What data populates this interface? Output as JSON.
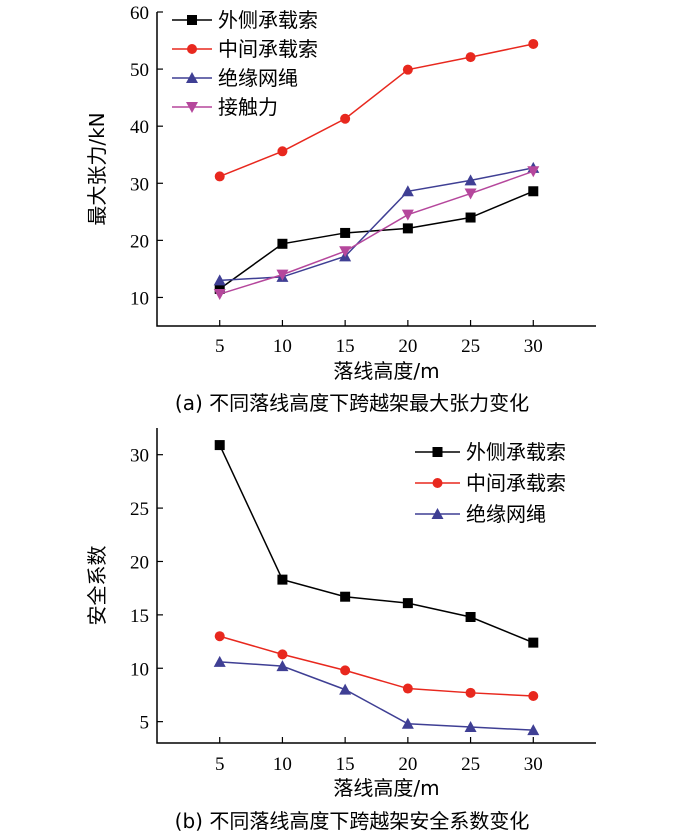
{
  "chart_data": [
    {
      "type": "line",
      "panel": "a",
      "caption": "(a) 不同落线高度下跨越架最大张力变化",
      "xlabel": "落线高度/m",
      "ylabel": "最大张力/kN",
      "x": [
        5,
        10,
        15,
        20,
        25,
        30
      ],
      "xlim": [
        0,
        35
      ],
      "ylim": [
        5,
        60
      ],
      "xticks": [
        5,
        10,
        15,
        20,
        25,
        30
      ],
      "yticks": [
        10,
        20,
        30,
        40,
        50,
        60
      ],
      "legend_position": "top-left",
      "grid": false,
      "series": [
        {
          "name": "外侧承载索",
          "values": [
            11.5,
            19.4,
            21.3,
            22.1,
            24.0,
            28.6
          ],
          "color": "#000000",
          "marker": "square"
        },
        {
          "name": "中间承载索",
          "values": [
            31.2,
            35.6,
            41.3,
            49.9,
            52.1,
            54.4
          ],
          "color": "#e8281e",
          "marker": "circle"
        },
        {
          "name": "绝缘网绳",
          "values": [
            13.0,
            13.6,
            17.2,
            28.6,
            30.5,
            32.7
          ],
          "color": "#3f3f94",
          "marker": "triangle-up"
        },
        {
          "name": "接触力",
          "values": [
            10.6,
            14.0,
            18.1,
            24.5,
            28.2,
            32.1
          ],
          "color": "#b5479c",
          "marker": "triangle-down"
        }
      ]
    },
    {
      "type": "line",
      "panel": "b",
      "caption": "(b) 不同落线高度下跨越架安全系数变化",
      "xlabel": "落线高度/m",
      "ylabel": "安全系数",
      "x": [
        5,
        10,
        15,
        20,
        25,
        30
      ],
      "xlim": [
        0,
        35
      ],
      "ylim": [
        3,
        32.5
      ],
      "xticks": [
        5,
        10,
        15,
        20,
        25,
        30
      ],
      "yticks": [
        5,
        10,
        15,
        20,
        25,
        30
      ],
      "legend_position": "top-right",
      "grid": false,
      "series": [
        {
          "name": "外侧承载索",
          "values": [
            30.9,
            18.3,
            16.7,
            16.1,
            14.8,
            12.4
          ],
          "color": "#000000",
          "marker": "square"
        },
        {
          "name": "中间承载索",
          "values": [
            13.0,
            11.3,
            9.8,
            8.1,
            7.7,
            7.4
          ],
          "color": "#e8281e",
          "marker": "circle"
        },
        {
          "name": "绝缘网绳",
          "values": [
            10.6,
            10.2,
            8.0,
            4.8,
            4.5,
            4.2
          ],
          "color": "#3f3f94",
          "marker": "triangle-up"
        }
      ]
    }
  ]
}
